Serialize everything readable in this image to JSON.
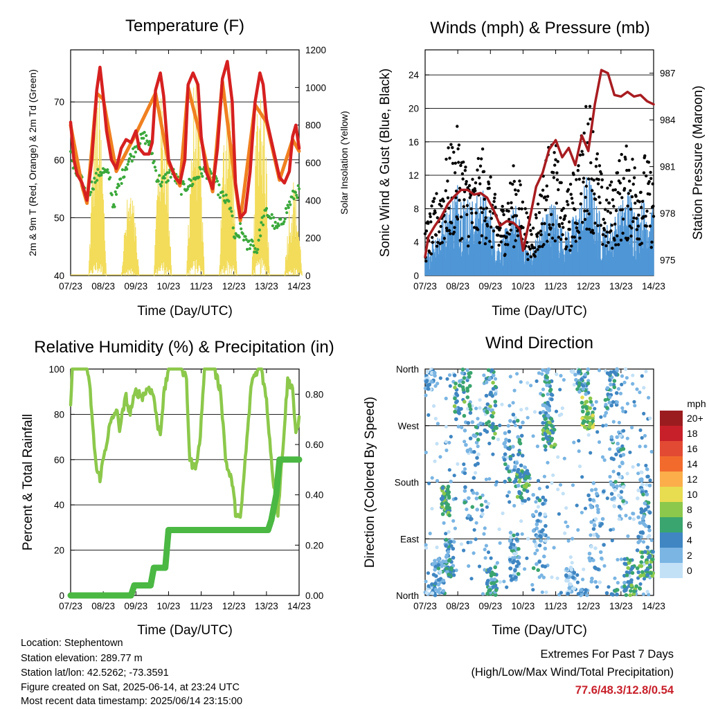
{
  "info": {
    "location": "Location: Stephentown",
    "elevation": "Station elevation: 289.77 m",
    "latlon": "Station lat/lon: 42.5262; -73.3591",
    "created": "Figure created on Sat, 2025-06-14, at 23:24 UTC",
    "latest": "Most recent data timestamp: 2025/06/14 23:15:00"
  },
  "extremes": {
    "heading": "Extremes For Past 7 Days",
    "subheading": "(High/Low/Max Wind/Total Precipitation)",
    "values": "77.6/48.3/12.8/0.54"
  },
  "chart_data": [
    {
      "id": "temperature",
      "type": "line",
      "title": "Temperature (F)",
      "xlabel": "Time (Day/UTC)",
      "ylabel": "2m & 9m T (Red, Orange) & 2m Td (Green)",
      "ylabel_right": "Solar Insolation (Yellow)",
      "x_ticks": [
        "07/23",
        "08/23",
        "09/23",
        "10/23",
        "11/23",
        "12/23",
        "13/23",
        "14/23"
      ],
      "xlim": [
        0,
        7
      ],
      "ylim": [
        40,
        79
      ],
      "y_ticks": [
        40,
        50,
        60,
        70
      ],
      "ylim_right": [
        0,
        1200
      ],
      "y_ticks_right": [
        0,
        200,
        400,
        600,
        800,
        1000,
        1200
      ],
      "grid": "horizontal",
      "series": [
        {
          "style": "line",
          "color": "#d62020",
          "axis": "left",
          "x": [
            0,
            0.1,
            0.2,
            0.35,
            0.5,
            0.65,
            0.8,
            0.9,
            1.0,
            1.1,
            1.25,
            1.4,
            1.55,
            1.7,
            1.85,
            2.0,
            2.1,
            2.25,
            2.4,
            2.5,
            2.6,
            2.75,
            2.85,
            3.0,
            3.2,
            3.35,
            3.5,
            3.6,
            3.75,
            3.9,
            4.0,
            4.15,
            4.35,
            4.5,
            4.65,
            4.8,
            4.95,
            5.05,
            5.2,
            5.35,
            5.5,
            5.65,
            5.8,
            5.9,
            6.0,
            6.2,
            6.4,
            6.55,
            6.7,
            6.8,
            6.9,
            7.0
          ],
          "values": [
            66.5,
            60,
            57.5,
            56,
            53,
            60,
            72,
            76,
            71,
            65,
            60,
            58.5,
            62,
            63.5,
            63,
            65,
            62,
            61,
            61,
            63,
            72,
            75,
            71,
            60,
            57,
            56,
            60,
            73,
            75,
            73,
            64,
            58,
            55,
            62,
            74,
            77,
            70,
            56,
            50,
            51,
            58,
            70,
            75,
            73,
            67,
            62,
            57,
            56,
            58,
            64,
            66,
            62
          ]
        },
        {
          "style": "line",
          "color": "#f08020",
          "axis": "left",
          "x": [
            0,
            0.35,
            0.5,
            0.8,
            1.0,
            1.4,
            2.0,
            2.6,
            3.0,
            3.35,
            3.6,
            4.0,
            4.35,
            4.65,
            5.05,
            5.2,
            5.65,
            6.0,
            6.4,
            6.8,
            7.0
          ],
          "values": [
            66,
            55.5,
            52.5,
            71.5,
            70.5,
            58,
            64.5,
            71.5,
            59.5,
            55.5,
            72.5,
            63.5,
            54.5,
            73.5,
            55.5,
            49.5,
            69.5,
            66.5,
            56.5,
            63.5,
            61.5
          ]
        },
        {
          "style": "points",
          "color": "#3aa83a",
          "axis": "left",
          "x": [
            0,
            0.05,
            0.1,
            0.2,
            0.35,
            0.5,
            0.6,
            0.7,
            0.8,
            0.9,
            1.0,
            1.1,
            1.2,
            1.3,
            1.4,
            1.5,
            1.6,
            1.7,
            1.8,
            1.9,
            2.0,
            2.1,
            2.25,
            2.4,
            2.5,
            2.65,
            2.8,
            2.95,
            3.1,
            3.25,
            3.4,
            3.55,
            3.7,
            3.85,
            4.0,
            4.15,
            4.3,
            4.45,
            4.6,
            4.75,
            4.9,
            5.0,
            5.1,
            5.2,
            5.3,
            5.4,
            5.55,
            5.7,
            5.85,
            6.0,
            6.15,
            6.3,
            6.45,
            6.6,
            6.75,
            6.9,
            7.0
          ],
          "values": [
            61.5,
            60,
            58,
            57.5,
            56,
            53.5,
            55,
            56,
            57,
            58,
            58,
            57.5,
            57,
            52,
            54,
            56,
            57.5,
            59,
            60,
            61,
            62.5,
            63,
            64,
            63,
            61,
            57,
            56,
            57,
            58,
            56.5,
            55,
            55.5,
            56,
            57,
            58,
            58,
            57,
            56,
            54,
            53,
            52,
            47,
            46,
            48,
            47,
            45,
            46,
            44,
            49,
            51,
            50,
            48,
            49,
            51,
            53,
            54.5,
            54.5
          ]
        }
      ],
      "solar": {
        "color": "#f2dc5a",
        "axis": "right",
        "day_starts": [
          0.55,
          1.55,
          2.55,
          3.55,
          4.55,
          5.55,
          6.55
        ],
        "day_peaks": [
          1010,
          480,
          1010,
          1100,
          1100,
          1190,
          530
        ]
      }
    },
    {
      "id": "winds",
      "type": "line",
      "title": "Winds (mph) & Pressure (mb)",
      "xlabel": "Time (Day/UTC)",
      "ylabel": "Sonic Wind & Gust (Blue, Black)",
      "ylabel_right": "Station Pressure (Maroon)",
      "x_ticks": [
        "07/23",
        "08/23",
        "09/23",
        "10/23",
        "11/23",
        "12/23",
        "13/23",
        "14/23"
      ],
      "xlim": [
        0,
        7
      ],
      "ylim": [
        0,
        27
      ],
      "y_ticks": [
        0,
        4,
        8,
        12,
        16,
        20,
        24
      ],
      "ylim_right": [
        974,
        988.5
      ],
      "y_ticks_right": [
        975,
        978,
        981,
        984,
        987
      ],
      "grid": "horizontal",
      "wind_envelope": {
        "x": [
          0,
          0.25,
          0.5,
          0.75,
          1.0,
          1.25,
          1.5,
          1.75,
          2.0,
          2.25,
          2.5,
          2.75,
          3.0,
          3.25,
          3.5,
          3.75,
          4.0,
          4.25,
          4.5,
          4.75,
          5.0,
          5.25,
          5.5,
          5.75,
          6.0,
          6.25,
          6.5,
          6.75,
          7.0
        ],
        "speed_max": [
          2,
          5,
          7,
          9,
          12,
          10,
          9,
          11,
          8,
          4,
          6,
          9,
          5,
          3,
          6,
          9,
          9,
          5,
          7,
          9,
          13,
          9,
          6,
          7,
          9,
          11,
          8,
          10,
          8
        ],
        "gust_max": [
          6,
          9,
          12,
          16,
          18,
          14,
          12,
          16,
          12,
          8,
          10,
          14,
          10,
          6,
          10,
          16,
          16,
          9,
          12,
          16,
          23,
          16,
          10,
          12,
          15,
          16,
          14,
          15,
          12
        ],
        "speed_color": "#4f96d6",
        "gust_color": "#000000"
      },
      "pressure": {
        "color": "#a81c20",
        "axis": "right",
        "x": [
          0,
          0.1,
          0.3,
          0.5,
          0.7,
          0.9,
          1.1,
          1.3,
          1.5,
          1.7,
          1.9,
          2.1,
          2.3,
          2.5,
          2.7,
          2.9,
          3.0,
          3.2,
          3.4,
          3.6,
          3.8,
          4.0,
          4.2,
          4.4,
          4.6,
          4.8,
          5.0,
          5.2,
          5.4,
          5.6,
          5.8,
          6.0,
          6.2,
          6.4,
          6.6,
          6.8,
          7.0
        ],
        "values": [
          975.2,
          976.5,
          977.2,
          977.8,
          978.6,
          979.1,
          979.5,
          979.5,
          979.2,
          979.3,
          979.0,
          978.2,
          977.2,
          977.5,
          977.4,
          977.0,
          975.6,
          977.6,
          979.7,
          980.6,
          982.1,
          982.7,
          981.6,
          982.2,
          981.1,
          983.0,
          982.0,
          985.0,
          987.2,
          987.0,
          985.6,
          985.5,
          985.8,
          985.5,
          985.6,
          985.2,
          985.0
        ]
      }
    },
    {
      "id": "humidity",
      "type": "line",
      "title": "Relative Humidity (%) & Precipitation (in)",
      "xlabel": "Time (Day/UTC)",
      "ylabel": "Percent & Total Rainfall",
      "x_ticks": [
        "07/23",
        "08/23",
        "09/23",
        "10/23",
        "11/23",
        "12/23",
        "13/23",
        "14/23"
      ],
      "xlim": [
        0,
        7
      ],
      "ylim": [
        0,
        100
      ],
      "y_ticks": [
        0,
        20,
        40,
        60,
        80,
        100
      ],
      "ylim_right": [
        0,
        0.9
      ],
      "y_ticks_right": [
        "0.00",
        "0.20",
        "0.40",
        "0.60",
        "0.80"
      ],
      "grid": "horizontal",
      "series": [
        {
          "name": "RH",
          "color": "#8cc84b",
          "axis": "left",
          "x": [
            0,
            0.05,
            0.15,
            0.5,
            0.6,
            0.7,
            0.8,
            0.9,
            1.0,
            1.2,
            1.4,
            1.5,
            1.7,
            1.8,
            2.0,
            2.2,
            2.4,
            2.55,
            2.65,
            2.75,
            2.85,
            3.0,
            3.2,
            3.4,
            3.55,
            3.65,
            3.8,
            3.95,
            4.1,
            4.2,
            4.4,
            4.6,
            4.75,
            4.85,
            4.95,
            5.05,
            5.2,
            5.35,
            5.55,
            5.75,
            5.85,
            6.0,
            6.2,
            6.35,
            6.5,
            6.65,
            6.8,
            6.9,
            7.0
          ],
          "values": [
            84,
            100,
            100,
            100,
            90,
            70,
            55,
            52,
            60,
            75,
            82,
            74,
            88,
            80,
            90,
            88,
            92,
            88,
            76,
            72,
            88,
            100,
            100,
            100,
            95,
            60,
            56,
            66,
            100,
            100,
            100,
            90,
            60,
            54,
            50,
            37,
            33,
            60,
            95,
            100,
            100,
            86,
            52,
            36,
            65,
            95,
            92,
            70,
            78
          ]
        },
        {
          "name": "Precip",
          "color": "#4ab843",
          "axis": "right",
          "step": true,
          "x": [
            0,
            1.85,
            1.95,
            2.45,
            2.55,
            2.9,
            3.0,
            6.05,
            6.15,
            6.3,
            6.4,
            7.0
          ],
          "values": [
            0.0,
            0.0,
            0.04,
            0.04,
            0.11,
            0.11,
            0.26,
            0.26,
            0.3,
            0.4,
            0.54,
            0.54
          ]
        }
      ]
    },
    {
      "id": "direction",
      "type": "scatter",
      "title": "Wind Direction",
      "xlabel": "Time (Day/UTC)",
      "ylabel": "Direction (Colored By Speed)",
      "x_ticks": [
        "07/23",
        "08/23",
        "09/23",
        "10/23",
        "11/23",
        "12/23",
        "13/23",
        "14/23"
      ],
      "xlim": [
        0,
        7
      ],
      "ylim": [
        0,
        360
      ],
      "y_ticks": [
        0,
        90,
        180,
        270,
        360
      ],
      "y_tick_labels": [
        "North",
        "East",
        "South",
        "West",
        "North"
      ],
      "grid": "horizontal",
      "colorbar": {
        "title": "mph",
        "labels": [
          "20+",
          "18",
          "16",
          "14",
          "12",
          "10",
          "8",
          "6",
          "4",
          "2",
          "0"
        ],
        "colors": [
          "#9b1c1f",
          "#c8202a",
          "#e34a33",
          "#f26b2d",
          "#fbae4a",
          "#e8dc50",
          "#8cc84b",
          "#3aa56e",
          "#3f86c2",
          "#7ab5e3",
          "#c3e1f6"
        ]
      },
      "clusters": [
        {
          "t": 0.0,
          "dt": 0.3,
          "dir": 350,
          "ddir": 25,
          "speed": 2
        },
        {
          "t": 0.2,
          "dt": 0.4,
          "dir": 30,
          "ddir": 30,
          "speed": 3
        },
        {
          "t": 0.5,
          "dt": 0.25,
          "dir": 150,
          "ddir": 25,
          "speed": 6
        },
        {
          "t": 0.6,
          "dt": 0.3,
          "dir": 60,
          "ddir": 30,
          "speed": 4
        },
        {
          "t": 0.9,
          "dt": 0.5,
          "dir": 320,
          "ddir": 40,
          "speed": 5
        },
        {
          "t": 1.2,
          "dt": 0.6,
          "dir": 200,
          "ddir": 80,
          "speed": 3
        },
        {
          "t": 1.8,
          "dt": 0.4,
          "dir": 300,
          "ddir": 50,
          "speed": 5
        },
        {
          "t": 1.9,
          "dt": 0.3,
          "dir": 20,
          "ddir": 25,
          "speed": 5
        },
        {
          "t": 2.4,
          "dt": 0.6,
          "dir": 230,
          "ddir": 60,
          "speed": 4
        },
        {
          "t": 2.6,
          "dt": 0.3,
          "dir": 60,
          "ddir": 40,
          "speed": 3
        },
        {
          "t": 2.8,
          "dt": 0.4,
          "dir": 175,
          "ddir": 25,
          "speed": 6
        },
        {
          "t": 3.3,
          "dt": 0.4,
          "dir": 100,
          "ddir": 60,
          "speed": 3
        },
        {
          "t": 3.6,
          "dt": 0.4,
          "dir": 255,
          "ddir": 20,
          "speed": 6
        },
        {
          "t": 3.6,
          "dt": 0.3,
          "dir": 320,
          "ddir": 40,
          "speed": 4
        },
        {
          "t": 4.3,
          "dt": 0.3,
          "dir": 20,
          "ddir": 25,
          "speed": 2
        },
        {
          "t": 4.6,
          "dt": 0.4,
          "dir": 345,
          "ddir": 25,
          "speed": 4
        },
        {
          "t": 4.8,
          "dt": 0.35,
          "dir": 290,
          "ddir": 25,
          "speed": 8
        },
        {
          "t": 5.0,
          "dt": 0.5,
          "dir": 100,
          "ddir": 80,
          "speed": 2
        },
        {
          "t": 5.5,
          "dt": 0.4,
          "dir": 330,
          "ddir": 40,
          "speed": 4
        },
        {
          "t": 5.7,
          "dt": 0.4,
          "dir": 200,
          "ddir": 60,
          "speed": 3
        },
        {
          "t": 6.1,
          "dt": 0.5,
          "dir": 30,
          "ddir": 30,
          "speed": 5
        },
        {
          "t": 6.6,
          "dt": 0.4,
          "dir": 50,
          "ddir": 20,
          "speed": 6
        },
        {
          "t": 6.5,
          "dt": 0.4,
          "dir": 130,
          "ddir": 60,
          "speed": 3
        }
      ]
    }
  ]
}
